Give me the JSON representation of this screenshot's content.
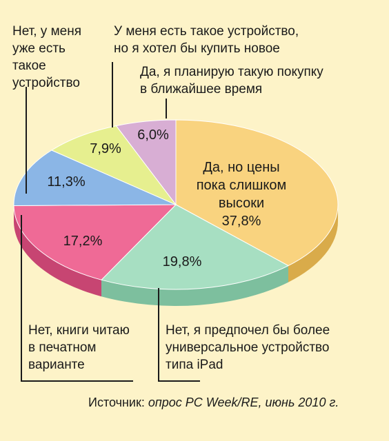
{
  "chart_data": {
    "type": "pie",
    "title": "",
    "slices": [
      {
        "label": "Да, но цены пока слишком высоки",
        "value": 37.8,
        "value_label": "37,8%",
        "color": "#f9d37f",
        "side_color": "#d9ab4a"
      },
      {
        "label": "Нет, я предпочел бы более универсальное устройство типа iPad",
        "value": 19.8,
        "value_label": "19,8%",
        "color": "#a7dfc2",
        "side_color": "#7dbf9e"
      },
      {
        "label": "Нет, книги читаю в печатном варианте",
        "value": 17.2,
        "value_label": "17,2%",
        "color": "#ef6a96",
        "side_color": "#c74572"
      },
      {
        "label": "Нет, у меня уже есть такое устройство",
        "value": 11.3,
        "value_label": "11,3%",
        "color": "#8bb6e6",
        "side_color": "#5d8cc4"
      },
      {
        "label": "У меня есть такое устройство, но я хотел бы купить новое",
        "value": 7.9,
        "value_label": "7,9%",
        "color": "#e6ef8f",
        "side_color": "#bfc861"
      },
      {
        "label": "Да, я планирую такую покупку в ближайшее время",
        "value": 6.0,
        "value_label": "6,0%",
        "color": "#d8aed4",
        "side_color": "#b185ad"
      }
    ],
    "annotations": {
      "mid": [
        "Да, но цены",
        "пока слишком",
        "высоки"
      ],
      "already": [
        "Нет, у меня",
        "уже есть",
        "такое",
        "устройство"
      ],
      "buy_new": [
        "У меня есть такое устройство,",
        "но я хотел бы купить новое"
      ],
      "planning": [
        "Да, я планирую такую покупку",
        "в ближайшее время"
      ],
      "print": [
        "Нет, книги читаю",
        "в печатном",
        "варианте"
      ],
      "ipad": [
        "Нет, я предпочел бы более",
        "универсальное устройство",
        "типа iPad"
      ]
    }
  },
  "source": {
    "prefix": "Источник: ",
    "text": "опрос PC Week/RE, июнь 2010 г."
  }
}
